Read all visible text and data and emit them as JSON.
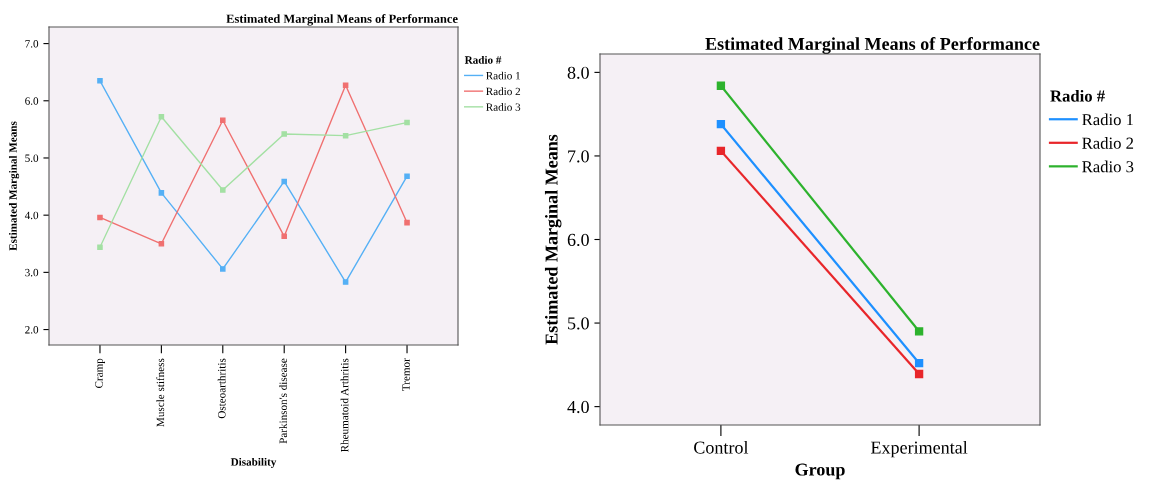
{
  "chart_data": [
    {
      "type": "line",
      "title": "Estimated Marginal Means of Performance",
      "xlabel": "Disability",
      "ylabel": "Estimated Marginal Means",
      "legend_title": "Radio #",
      "legend": "right",
      "marker": "square",
      "line_style": "solid",
      "grid": false,
      "categories": [
        "Cramp",
        "Muscle stifness",
        "Osteoarthritis",
        "Parkinson's disease",
        "Rheumatoid Arthritis",
        "Tremor"
      ],
      "ylim": [
        1.73,
        7.29
      ],
      "yticks": [
        {
          "value": 2,
          "label": "2.0"
        },
        {
          "value": 3,
          "label": "3.0"
        },
        {
          "value": 4,
          "label": "4.0"
        },
        {
          "value": 5,
          "label": "5.0"
        },
        {
          "value": 6,
          "label": "6.0"
        },
        {
          "value": 7,
          "label": "7.0"
        }
      ],
      "series": [
        {
          "name": "Radio 1",
          "color": "#55b0f5",
          "values": [
            6.35,
            4.39,
            3.06,
            4.59,
            2.83,
            4.68
          ]
        },
        {
          "name": "Radio 2",
          "color": "#f07070",
          "values": [
            3.96,
            3.5,
            5.66,
            3.63,
            6.27,
            3.87
          ]
        },
        {
          "name": "Radio 3",
          "color": "#a3e0a3",
          "values": [
            3.44,
            5.72,
            4.44,
            5.42,
            5.39,
            5.62
          ]
        }
      ]
    },
    {
      "type": "line",
      "title": "Estimated Marginal Means of Performance",
      "xlabel": "Group",
      "ylabel": "Estimated Marginal Means",
      "legend_title": "Radio #",
      "legend": "right",
      "marker": "square",
      "line_style": "solid",
      "grid": false,
      "categories": [
        "Control",
        "Experimental"
      ],
      "ylim": [
        3.78,
        8.22
      ],
      "yticks": [
        {
          "value": 4,
          "label": "4.0"
        },
        {
          "value": 5,
          "label": "5.0"
        },
        {
          "value": 6,
          "label": "6.0"
        },
        {
          "value": 7,
          "label": "7.0"
        },
        {
          "value": 8,
          "label": "8.0"
        }
      ],
      "series": [
        {
          "name": "Radio 1",
          "color": "#1e90ff",
          "values": [
            7.38,
            4.52
          ]
        },
        {
          "name": "Radio 2",
          "color": "#e8262a",
          "values": [
            7.06,
            4.39
          ]
        },
        {
          "name": "Radio 3",
          "color": "#2db22d",
          "values": [
            7.84,
            4.9
          ]
        }
      ]
    }
  ]
}
